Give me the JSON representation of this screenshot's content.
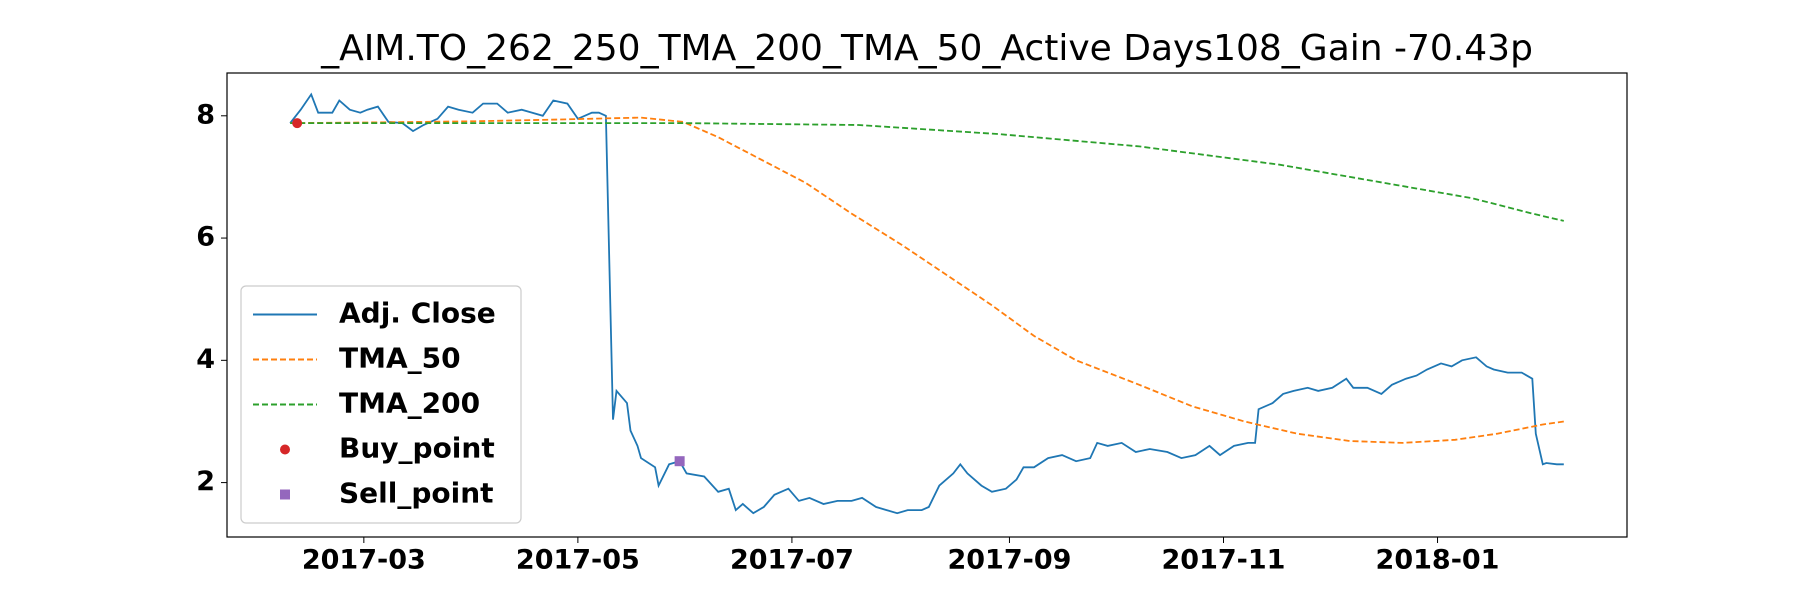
{
  "chart_data": {
    "type": "line",
    "title": "_AIM.TO_262_250_TMA_200_TMA_50_Active Days108_Gain -70.43p",
    "xlim": [
      20,
      419
    ],
    "ylim": [
      1.11,
      8.7
    ],
    "xticks": [
      {
        "value": 59,
        "label": "2017-03"
      },
      {
        "value": 120,
        "label": "2017-05"
      },
      {
        "value": 181,
        "label": "2017-07"
      },
      {
        "value": 243,
        "label": "2017-09"
      },
      {
        "value": 304,
        "label": "2017-11"
      },
      {
        "value": 365,
        "label": "2018-01"
      }
    ],
    "yticks": [
      2,
      4,
      6,
      8
    ],
    "legend": "lower left",
    "series": [
      {
        "name": "Adj. Close",
        "color": "#1f77b4",
        "style": "solid",
        "x": [
          38,
          41,
          44,
          46,
          50,
          52,
          55,
          58,
          60,
          63,
          66,
          70,
          73,
          76,
          80,
          83,
          86,
          90,
          93,
          97,
          100,
          104,
          107,
          110,
          113,
          117,
          120,
          124,
          126,
          128,
          130,
          131,
          134,
          135,
          137,
          138,
          142,
          143,
          146,
          149,
          151,
          156,
          160,
          163,
          165,
          167,
          170,
          173,
          176,
          180,
          183,
          186,
          190,
          194,
          198,
          201,
          205,
          208,
          211,
          214,
          218,
          220,
          223,
          227,
          229,
          231,
          235,
          238,
          242,
          245,
          247,
          250,
          254,
          258,
          262,
          266,
          268,
          271,
          275,
          279,
          283,
          288,
          292,
          296,
          300,
          303,
          307,
          311,
          313,
          314,
          318,
          321,
          324,
          328,
          331,
          335,
          339,
          341,
          345,
          349,
          352,
          356,
          359,
          362,
          366,
          369,
          372,
          376,
          379,
          381,
          385,
          389,
          392,
          393,
          395,
          396,
          399,
          401
        ],
        "values": [
          7.88,
          8.1,
          8.35,
          8.05,
          8.05,
          8.25,
          8.1,
          8.05,
          8.1,
          8.15,
          7.9,
          7.88,
          7.75,
          7.85,
          7.95,
          8.15,
          8.1,
          8.05,
          8.2,
          8.2,
          8.05,
          8.1,
          8.05,
          8.0,
          8.25,
          8.2,
          7.95,
          8.05,
          8.05,
          8.0,
          3.03,
          3.5,
          3.3,
          2.85,
          2.6,
          2.4,
          2.25,
          1.95,
          2.3,
          2.35,
          2.15,
          2.1,
          1.85,
          1.9,
          1.55,
          1.65,
          1.5,
          1.6,
          1.8,
          1.9,
          1.7,
          1.75,
          1.65,
          1.7,
          1.7,
          1.75,
          1.6,
          1.55,
          1.5,
          1.55,
          1.55,
          1.6,
          1.95,
          2.15,
          2.3,
          2.15,
          1.95,
          1.85,
          1.9,
          2.05,
          2.25,
          2.25,
          2.4,
          2.45,
          2.35,
          2.4,
          2.65,
          2.6,
          2.65,
          2.5,
          2.55,
          2.5,
          2.4,
          2.45,
          2.6,
          2.45,
          2.6,
          2.65,
          2.65,
          3.2,
          3.3,
          3.45,
          3.5,
          3.55,
          3.5,
          3.55,
          3.7,
          3.55,
          3.55,
          3.45,
          3.6,
          3.7,
          3.75,
          3.85,
          3.95,
          3.9,
          4.0,
          4.05,
          3.9,
          3.85,
          3.8,
          3.8,
          3.7,
          2.8,
          2.3,
          2.32,
          2.3,
          2.3
        ]
      },
      {
        "name": "TMA_50",
        "color": "#ff7f0e",
        "style": "dashed",
        "x": [
          38,
          60,
          90,
          115,
          130,
          138,
          150,
          160,
          175,
          185,
          198,
          212,
          225,
          238,
          250,
          262,
          280,
          295,
          310,
          325,
          340,
          355,
          370,
          382,
          395,
          401
        ],
        "values": [
          7.88,
          7.89,
          7.91,
          7.94,
          7.96,
          7.97,
          7.9,
          7.65,
          7.2,
          6.9,
          6.4,
          5.9,
          5.4,
          4.9,
          4.4,
          4.0,
          3.6,
          3.25,
          3.0,
          2.8,
          2.68,
          2.65,
          2.7,
          2.8,
          2.95,
          3.0
        ]
      },
      {
        "name": "TMA_200",
        "color": "#2ca02c",
        "style": "dashed",
        "x": [
          38,
          100,
          150,
          200,
          240,
          280,
          320,
          350,
          375,
          392,
          401
        ],
        "values": [
          7.88,
          7.88,
          7.88,
          7.85,
          7.7,
          7.5,
          7.2,
          6.9,
          6.65,
          6.4,
          6.28
        ]
      },
      {
        "name": "Buy_point",
        "color": "#d62728",
        "style": "circle",
        "x": [
          40
        ],
        "values": [
          7.88
        ]
      },
      {
        "name": "Sell_point",
        "color": "#9467bd",
        "style": "square",
        "x": [
          149
        ],
        "values": [
          2.35
        ]
      }
    ]
  }
}
